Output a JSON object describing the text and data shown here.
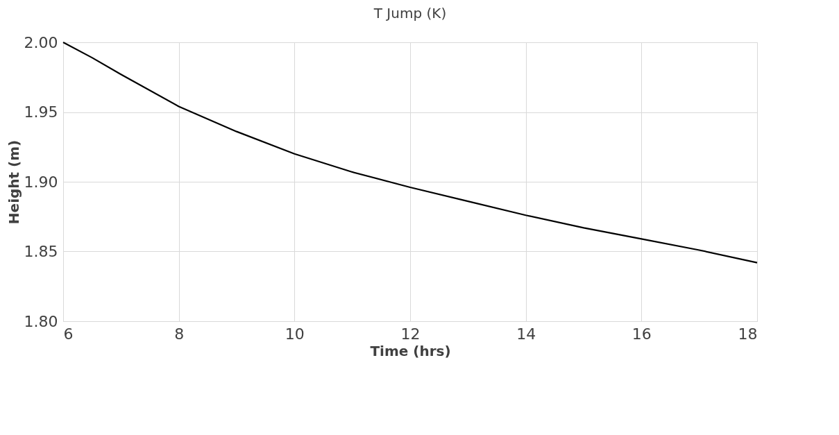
{
  "chart_data": {
    "type": "line",
    "title": "T Jump (K)",
    "xlabel": "Time (hrs)",
    "ylabel": "Height (m)",
    "x": [
      6,
      6.5,
      7,
      8,
      9,
      10,
      11,
      12,
      13,
      14,
      15,
      16,
      17,
      18
    ],
    "series": [
      {
        "color": "#000000",
        "values": [
          2.0,
          1.989,
          1.977,
          1.954,
          1.936,
          1.92,
          1.907,
          1.896,
          1.886,
          1.876,
          1.867,
          1.859,
          1.851,
          1.842
        ]
      }
    ],
    "xlim": [
      6,
      18
    ],
    "xticks": [
      6,
      8,
      10,
      12,
      14,
      16,
      18
    ],
    "ylim": [
      1.8,
      2.0
    ],
    "yticks": [
      {
        "value": 1.8,
        "label": "1.80"
      },
      {
        "value": 1.85,
        "label": "1.85"
      },
      {
        "value": 1.9,
        "label": "1.90"
      },
      {
        "value": 1.95,
        "label": "1.95"
      },
      {
        "value": 2.0,
        "label": "2.00"
      }
    ],
    "grid": true,
    "marker": "none",
    "line_style": "solid",
    "legend": false
  }
}
